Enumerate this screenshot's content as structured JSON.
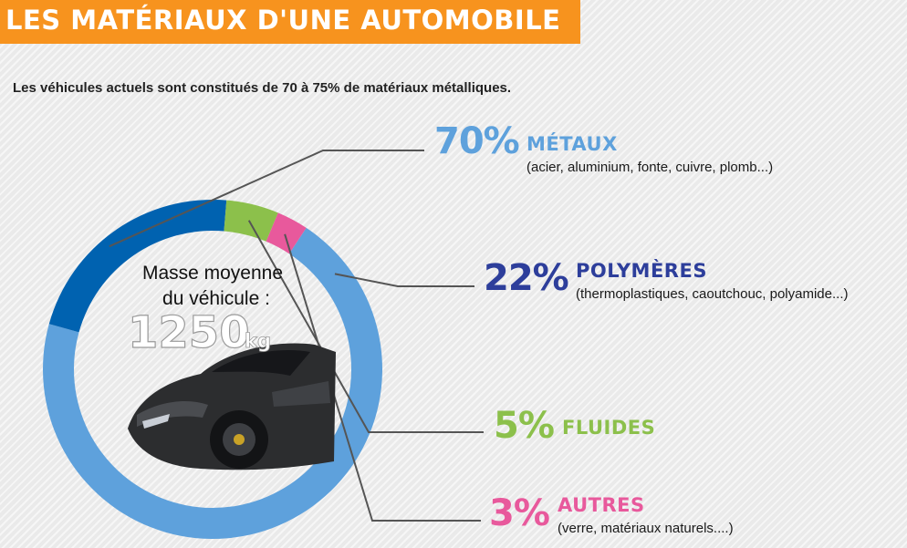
{
  "header": {
    "title": "LES MATÉRIAUX D'UNE AUTOMOBILE",
    "subtitle": "Les véhicules actuels sont constitués de 70 à 75% de matériaux métalliques."
  },
  "center": {
    "line1": "Masse moyenne",
    "line2": "du véhicule :",
    "mass_value": "1250",
    "mass_unit": "kg"
  },
  "chart_data": {
    "type": "pie",
    "style": "donut",
    "slices": [
      {
        "percent_label": "70%",
        "name": "MÉTAUX",
        "value": 70,
        "detail": "(acier, aluminium, fonte, cuivre, plomb...)",
        "color": "#5ea1dc"
      },
      {
        "percent_label": "22%",
        "name": "POLYMÈRES",
        "value": 22,
        "detail": "(thermoplastiques, caoutchouc, polyamide...)",
        "color": "#0062b0"
      },
      {
        "percent_label": "5%",
        "name": "FLUIDES",
        "value": 5,
        "detail": "",
        "color": "#8cc04b"
      },
      {
        "percent_label": "3%",
        "name": "AUTRES",
        "value": 3,
        "detail": "(verre, matériaux naturels....)",
        "color": "#e8599c"
      }
    ],
    "label_colors": [
      "#5ea1dc",
      "#2d3e9b",
      "#8cc04b",
      "#e8599c"
    ]
  }
}
